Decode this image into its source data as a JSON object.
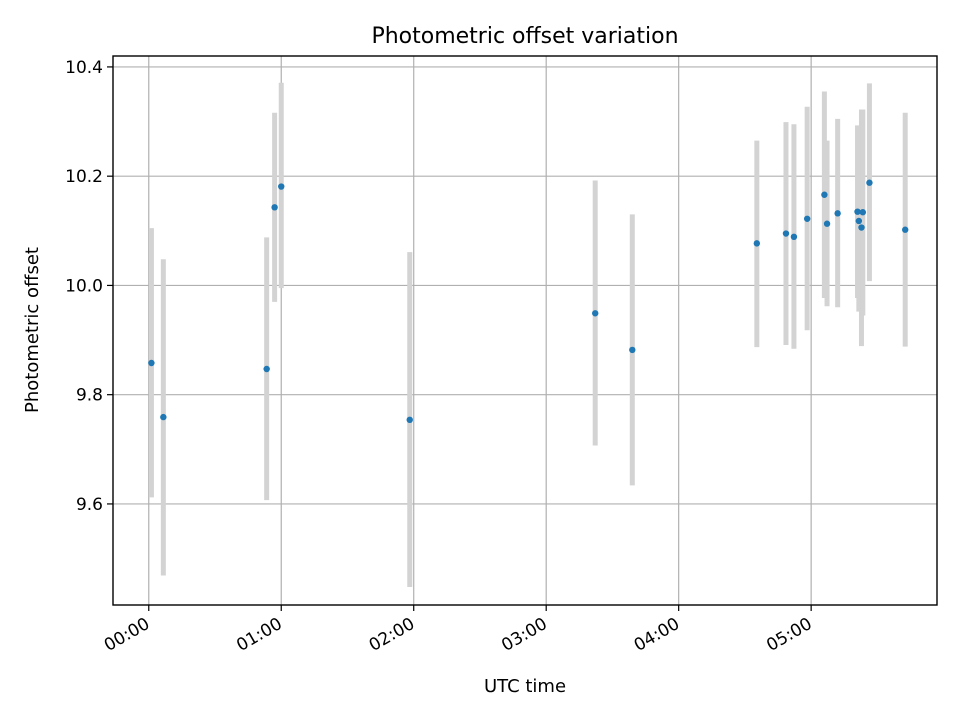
{
  "chart_data": {
    "type": "scatter",
    "title": "Photometric offset variation",
    "xlabel": "UTC time",
    "ylabel": "Photometric offset",
    "x_unit": "hours",
    "xlim": [
      -0.27,
      5.95
    ],
    "ylim": [
      9.415,
      10.42
    ],
    "x_ticks": [
      {
        "value": 0,
        "label": "00:00"
      },
      {
        "value": 1,
        "label": "01:00"
      },
      {
        "value": 2,
        "label": "02:00"
      },
      {
        "value": 3,
        "label": "03:00"
      },
      {
        "value": 4,
        "label": "04:00"
      },
      {
        "value": 5,
        "label": "05:00"
      }
    ],
    "y_ticks": [
      {
        "value": 9.6,
        "label": "9.6"
      },
      {
        "value": 9.8,
        "label": "9.8"
      },
      {
        "value": 10.0,
        "label": "10.0"
      },
      {
        "value": 10.2,
        "label": "10.2"
      },
      {
        "value": 10.4,
        "label": "10.4"
      }
    ],
    "grid": true,
    "point_color": "#1f77b4",
    "errorbar_color": "#d3d3d3",
    "points": [
      {
        "x": 0.02,
        "y": 9.858,
        "ylo": 9.612,
        "yhi": 10.105
      },
      {
        "x": 0.11,
        "y": 9.759,
        "ylo": 9.469,
        "yhi": 10.048
      },
      {
        "x": 0.89,
        "y": 9.847,
        "ylo": 9.607,
        "yhi": 10.088
      },
      {
        "x": 0.95,
        "y": 10.143,
        "ylo": 9.97,
        "yhi": 10.316
      },
      {
        "x": 1.0,
        "y": 10.181,
        "ylo": 9.995,
        "yhi": 10.371
      },
      {
        "x": 1.97,
        "y": 9.754,
        "ylo": 9.448,
        "yhi": 10.061
      },
      {
        "x": 3.37,
        "y": 9.949,
        "ylo": 9.707,
        "yhi": 10.192
      },
      {
        "x": 3.65,
        "y": 9.882,
        "ylo": 9.634,
        "yhi": 10.13
      },
      {
        "x": 4.59,
        "y": 10.077,
        "ylo": 9.887,
        "yhi": 10.265
      },
      {
        "x": 4.81,
        "y": 10.095,
        "ylo": 9.891,
        "yhi": 10.299
      },
      {
        "x": 4.87,
        "y": 10.089,
        "ylo": 9.884,
        "yhi": 10.295
      },
      {
        "x": 4.97,
        "y": 10.122,
        "ylo": 9.918,
        "yhi": 10.327
      },
      {
        "x": 5.1,
        "y": 10.166,
        "ylo": 9.977,
        "yhi": 10.355
      },
      {
        "x": 5.12,
        "y": 10.113,
        "ylo": 9.962,
        "yhi": 10.265
      },
      {
        "x": 5.2,
        "y": 10.132,
        "ylo": 9.96,
        "yhi": 10.305
      },
      {
        "x": 5.35,
        "y": 10.135,
        "ylo": 9.977,
        "yhi": 10.293
      },
      {
        "x": 5.36,
        "y": 10.118,
        "ylo": 9.952,
        "yhi": 10.285
      },
      {
        "x": 5.38,
        "y": 10.106,
        "ylo": 9.889,
        "yhi": 10.322
      },
      {
        "x": 5.39,
        "y": 10.134,
        "ylo": 9.945,
        "yhi": 10.322
      },
      {
        "x": 5.44,
        "y": 10.188,
        "ylo": 10.008,
        "yhi": 10.37
      },
      {
        "x": 5.71,
        "y": 10.102,
        "ylo": 9.888,
        "yhi": 10.316
      }
    ]
  }
}
